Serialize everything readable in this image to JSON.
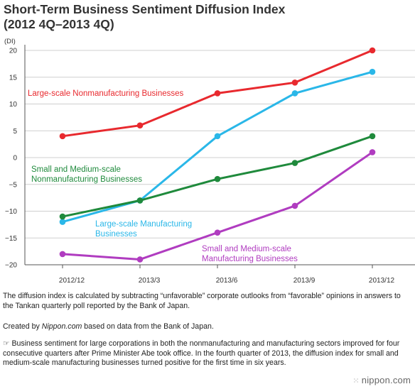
{
  "title_lines": [
    "Short-Term Business Sentiment Diffusion Index",
    "(2012 4Q–2013 4Q)"
  ],
  "chart_data": {
    "type": "line",
    "title": "Short-Term Business Sentiment Diffusion Index (2012 4Q–2013 4Q)",
    "ylabel": "(DI)",
    "xlabel": "",
    "ylim": [
      -20,
      20
    ],
    "yticks": [
      20,
      15,
      10,
      5,
      0,
      -5,
      -10,
      -15,
      -20
    ],
    "ytick_labels": [
      "20",
      "15",
      "10",
      "5",
      "0",
      "−5",
      "−10",
      "−15",
      "−20"
    ],
    "grid": true,
    "categories": [
      "2012/12",
      "2013/3",
      "2013/6",
      "2013/9",
      "2013/12"
    ],
    "series": [
      {
        "name": "Large-scale Nonmanufacturing Businesses",
        "label_lines": [
          "Large-scale Nonmanufacturing Businesses"
        ],
        "color": "#e8292e",
        "values": [
          4,
          6,
          12,
          14,
          20
        ]
      },
      {
        "name": "Large-scale Manufacturing Businesses",
        "label_lines": [
          "Large-scale Manufacturing",
          "Businesses"
        ],
        "color": "#2ab7e8",
        "values": [
          -12,
          -8,
          4,
          12,
          16
        ]
      },
      {
        "name": "Small and Medium-scale Nonmanufacturing Businesses",
        "label_lines": [
          "Small and Medium-scale",
          "Nonmanufacturing Businesses"
        ],
        "color": "#1f8a3c",
        "values": [
          -11,
          -8,
          -4,
          -1,
          4
        ]
      },
      {
        "name": "Small and Medium-scale Manufacturing Businesses",
        "label_lines": [
          "Small and Medium-scale",
          "Manufacturing Businesses"
        ],
        "color": "#b03cc0",
        "values": [
          -18,
          -19,
          -14,
          -9,
          1
        ]
      }
    ]
  },
  "notes": {
    "definition": "The diffusion index is calculated by subtracting “unfavorable” corporate outlooks from “favorable” opinions in answers to the Tankan quarterly poll reported by the Bank of Japan.",
    "credit_prefix": "Created by ",
    "credit_site": "Nippon.com",
    "credit_suffix": " based on data from the Bank of Japan.",
    "commentary": "☞ Business sentiment for large corporations in both the nonmanufacturing and manufacturing sectors improved for four consecutive quarters after Prime Minister Abe took office. In the fourth quarter of 2013, the diffusion index for small and medium-scale manufacturing businesses turned positive for the first time in six years."
  },
  "brand": "nippon.com"
}
